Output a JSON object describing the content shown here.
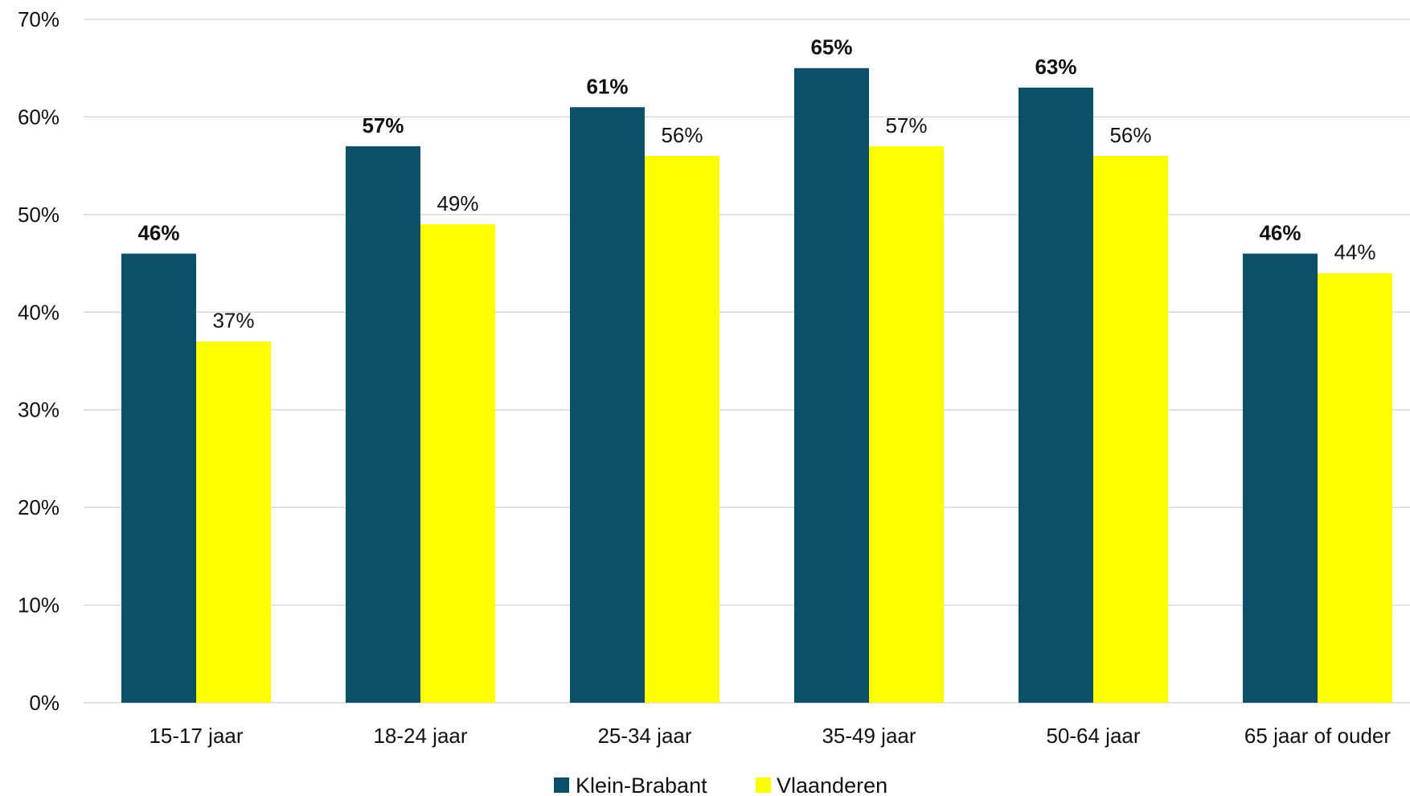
{
  "chart_data": {
    "type": "bar",
    "title": "",
    "xlabel": "",
    "ylabel": "",
    "categories": [
      "15-17 jaar",
      "18-24 jaar",
      "25-34 jaar",
      "35-49 jaar",
      "50-64 jaar",
      "65 jaar of ouder"
    ],
    "series": [
      {
        "name": "Klein-Brabant",
        "color": "#0b5068",
        "values": [
          46,
          57,
          61,
          65,
          63,
          46
        ],
        "labels": [
          "46%",
          "57%",
          "61%",
          "65%",
          "63%",
          "46%"
        ],
        "label_weight": "bold"
      },
      {
        "name": "Vlaanderen",
        "color": "#ffff00",
        "values": [
          37,
          49,
          56,
          57,
          56,
          44
        ],
        "labels": [
          "37%",
          "49%",
          "56%",
          "57%",
          "56%",
          "44%"
        ],
        "label_weight": "normal"
      }
    ],
    "ylim": [
      0,
      70
    ],
    "yticks": [
      0,
      10,
      20,
      30,
      40,
      50,
      60,
      70
    ],
    "ytick_labels": [
      "0%",
      "10%",
      "20%",
      "30%",
      "40%",
      "50%",
      "60%",
      "70%"
    ],
    "grid": true,
    "legend_position": "bottom"
  }
}
